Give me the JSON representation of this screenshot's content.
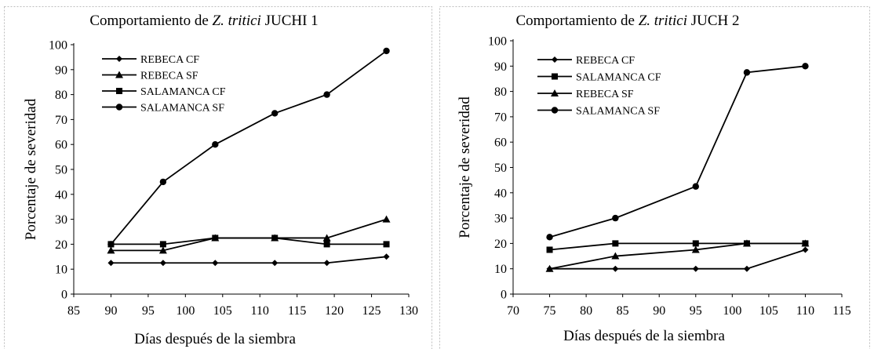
{
  "chart_data": [
    {
      "type": "line",
      "title_prefix": "Comportamiento de ",
      "title_italic": "Z. tritici",
      "title_suffix": " JUCHI 1",
      "xlabel": "Días después de la siembra",
      "ylabel": "Porcentaje de severidad",
      "xlim": [
        85,
        130
      ],
      "ylim": [
        0,
        100
      ],
      "xticks": [
        85,
        90,
        95,
        100,
        105,
        110,
        115,
        120,
        125,
        130
      ],
      "yticks": [
        0,
        10,
        20,
        30,
        40,
        50,
        60,
        70,
        80,
        90,
        100
      ],
      "grid": false,
      "legend_position": "top-left",
      "series": [
        {
          "name": "REBECA CF",
          "marker": "diamond",
          "x": [
            90,
            97,
            104,
            112,
            119,
            127
          ],
          "y": [
            12.5,
            12.5,
            12.5,
            12.5,
            12.5,
            15
          ]
        },
        {
          "name": "REBECA SF",
          "marker": "triangle",
          "x": [
            90,
            97,
            104,
            112,
            119,
            127
          ],
          "y": [
            17.5,
            17.5,
            22.5,
            22.5,
            22.5,
            30
          ]
        },
        {
          "name": "SALAMANCA CF",
          "marker": "square",
          "x": [
            90,
            97,
            104,
            112,
            119,
            127
          ],
          "y": [
            20,
            20,
            22.5,
            22.5,
            20,
            20
          ]
        },
        {
          "name": "SALAMANCA SF",
          "marker": "circle",
          "x": [
            90,
            97,
            104,
            112,
            119,
            127
          ],
          "y": [
            20,
            45,
            60,
            72.5,
            80,
            97.5
          ]
        }
      ]
    },
    {
      "type": "line",
      "title_prefix": "Comportamiento de ",
      "title_italic": "Z. tritici",
      "title_suffix": " JUCH 2",
      "xlabel": "Días después de la siembra",
      "ylabel": "Porcentaje de severidad",
      "xlim": [
        70,
        115
      ],
      "ylim": [
        0,
        100
      ],
      "xticks": [
        70,
        75,
        80,
        85,
        90,
        95,
        100,
        105,
        110,
        115
      ],
      "yticks": [
        0,
        10,
        20,
        30,
        40,
        50,
        60,
        70,
        80,
        90,
        100
      ],
      "grid": false,
      "legend_position": "top-left",
      "series": [
        {
          "name": "REBECA CF",
          "marker": "diamond",
          "x": [
            75,
            84,
            95,
            102,
            110
          ],
          "y": [
            10,
            10,
            10,
            10,
            17.5
          ]
        },
        {
          "name": "SALAMANCA CF",
          "marker": "square",
          "x": [
            75,
            84,
            95,
            102,
            110
          ],
          "y": [
            17.5,
            20,
            20,
            20,
            20
          ]
        },
        {
          "name": "REBECA SF",
          "marker": "triangle",
          "x": [
            75,
            84,
            95,
            102,
            110
          ],
          "y": [
            10,
            15,
            17.5,
            20,
            20
          ]
        },
        {
          "name": "SALAMANCA SF",
          "marker": "circle",
          "x": [
            75,
            84,
            95,
            102,
            110
          ],
          "y": [
            22.5,
            30,
            42.5,
            87.5,
            90
          ]
        }
      ]
    }
  ]
}
